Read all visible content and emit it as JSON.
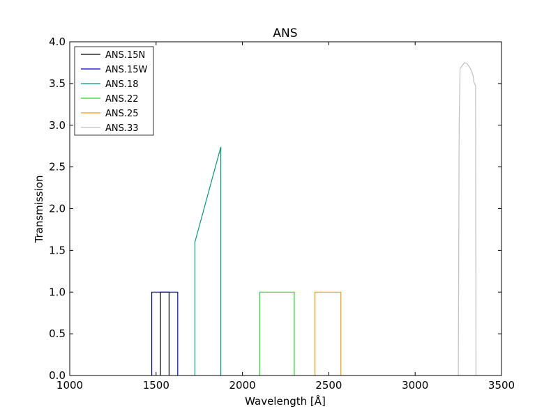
{
  "chart_data": {
    "type": "line",
    "title": "ANS",
    "xlabel": "Wavelength [Å]",
    "ylabel": "Transmission",
    "xlim": [
      1000,
      3500
    ],
    "ylim": [
      0.0,
      4.0
    ],
    "x_ticks": [
      "1000",
      "1500",
      "2000",
      "2500",
      "3000",
      "3500"
    ],
    "y_ticks": [
      "0.0",
      "0.5",
      "1.0",
      "1.5",
      "2.0",
      "2.5",
      "3.0",
      "3.5",
      "4.0"
    ],
    "x_tick_values": [
      1000,
      1500,
      2000,
      2500,
      3000,
      3500
    ],
    "y_tick_values": [
      0.0,
      0.5,
      1.0,
      1.5,
      2.0,
      2.5,
      3.0,
      3.5,
      4.0
    ],
    "grid": false,
    "legend_position": "top-left",
    "series": [
      {
        "name": "ANS.15N",
        "color": "#000000",
        "points": [
          [
            1525,
            0
          ],
          [
            1525,
            1.0
          ],
          [
            1575,
            1.0
          ],
          [
            1575,
            0
          ]
        ]
      },
      {
        "name": "ANS.15W",
        "color": "#0000cc",
        "points": [
          [
            1475,
            0
          ],
          [
            1475,
            1.0
          ],
          [
            1625,
            1.0
          ],
          [
            1625,
            0
          ]
        ]
      },
      {
        "name": "ANS.18",
        "color": "#009977",
        "points": [
          [
            1725,
            0
          ],
          [
            1725,
            1.6
          ],
          [
            1875,
            2.74
          ],
          [
            1875,
            0
          ]
        ]
      },
      {
        "name": "ANS.22",
        "color": "#22dd22",
        "points": [
          [
            2100,
            0
          ],
          [
            2100,
            1.0
          ],
          [
            2300,
            1.0
          ],
          [
            2300,
            0
          ]
        ]
      },
      {
        "name": "ANS.25",
        "color": "#ff9900",
        "points": [
          [
            2420,
            0
          ],
          [
            2420,
            1.0
          ],
          [
            2570,
            1.0
          ],
          [
            2570,
            0
          ]
        ]
      },
      {
        "name": "ANS.33",
        "color": "#c0c0c0",
        "points": [
          [
            3250,
            0
          ],
          [
            3255,
            3.0
          ],
          [
            3260,
            3.68
          ],
          [
            3275,
            3.72
          ],
          [
            3285,
            3.75
          ],
          [
            3300,
            3.74
          ],
          [
            3320,
            3.68
          ],
          [
            3335,
            3.6
          ],
          [
            3340,
            3.52
          ],
          [
            3350,
            3.47
          ],
          [
            3352,
            0
          ]
        ]
      }
    ]
  }
}
